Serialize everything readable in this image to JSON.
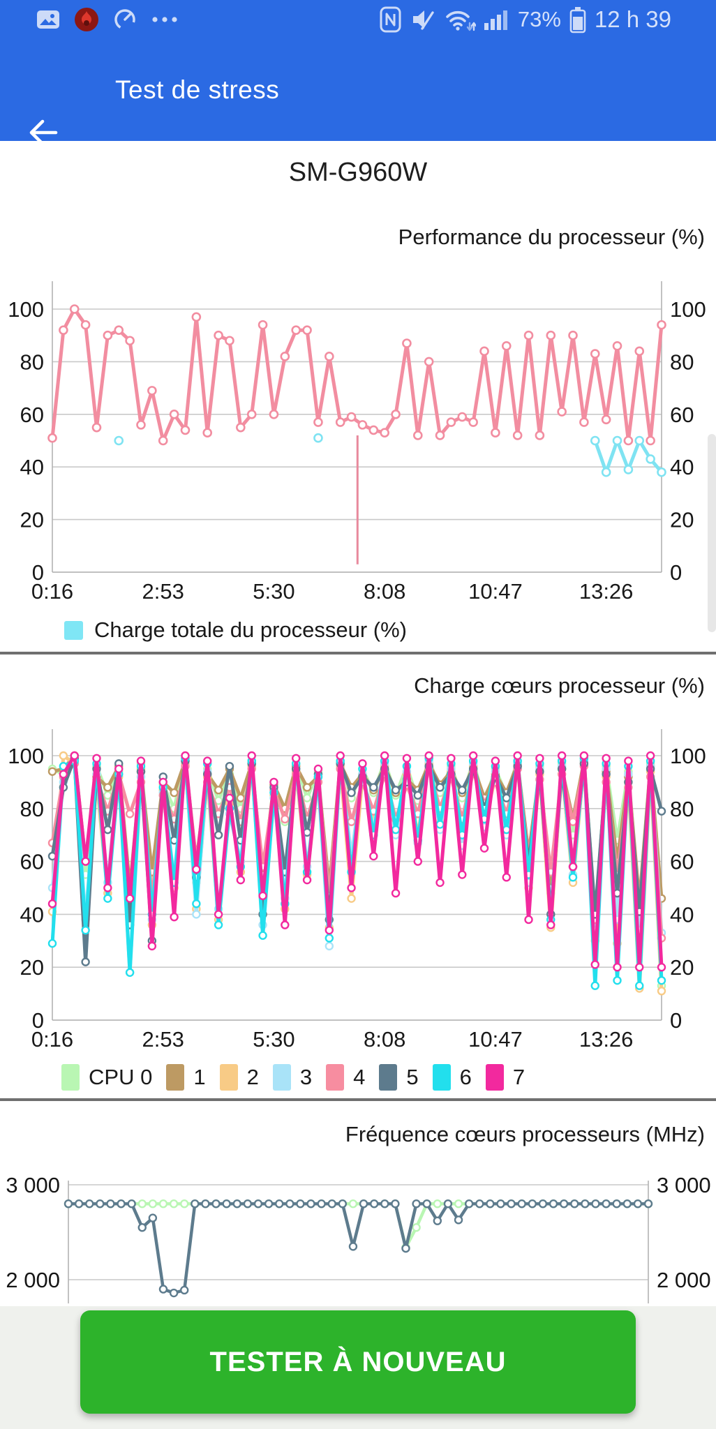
{
  "status_bar": {
    "battery_percent": "73%",
    "time": "12 h 39",
    "left_icons": [
      "image-icon",
      "antutu-flame-icon",
      "gauge-icon",
      "more-dots-icon"
    ],
    "right_icons": [
      "nfc-icon",
      "mute-icon",
      "wifi-icon",
      "signal-icon",
      "battery-icon"
    ],
    "bar_color": "#2B6AE3"
  },
  "app_bar": {
    "title": "Test de stress",
    "back_icon": "arrow-left-icon"
  },
  "device_title": "SM-G960W",
  "button": {
    "label": "TESTER À NOUVEAU",
    "color": "#2DB32B"
  },
  "chart_data": [
    {
      "id": "performance",
      "type": "line",
      "title": "Performance du processeur (%)",
      "ylim": [
        0,
        100
      ],
      "grid": true,
      "yticks": [
        {
          "v": 100,
          "label": "100"
        },
        {
          "v": 80,
          "label": "80"
        },
        {
          "v": 60,
          "label": "60"
        },
        {
          "v": 40,
          "label": "40"
        },
        {
          "v": 20,
          "label": "20"
        },
        {
          "v": 0,
          "label": "0"
        }
      ],
      "xticks": [
        {
          "i": 0,
          "label": "0:16"
        },
        {
          "i": 10,
          "label": "2:53"
        },
        {
          "i": 20,
          "label": "5:30"
        },
        {
          "i": 30,
          "label": "8:08"
        },
        {
          "i": 40,
          "label": "10:47"
        },
        {
          "i": 50,
          "label": "13:26"
        }
      ],
      "legend": [
        {
          "label": "Charge totale du processeur (%)",
          "color": "#7FE6F5"
        }
      ],
      "series": [
        {
          "name": "charge-totale",
          "color": "#7FE3F2",
          "values": [
            null,
            null,
            null,
            null,
            null,
            null,
            50,
            null,
            null,
            null,
            null,
            null,
            null,
            null,
            null,
            null,
            null,
            null,
            null,
            null,
            null,
            null,
            null,
            null,
            51,
            null,
            null,
            null,
            null,
            null,
            null,
            null,
            null,
            null,
            null,
            null,
            null,
            null,
            null,
            null,
            null,
            null,
            null,
            null,
            null,
            null,
            null,
            null,
            null,
            50,
            38,
            50,
            39,
            50,
            43,
            38
          ]
        },
        {
          "name": "performance",
          "color": "#F28DA0",
          "values": [
            51,
            92,
            100,
            94,
            55,
            90,
            92,
            88,
            56,
            69,
            50,
            60,
            54,
            97,
            53,
            90,
            88,
            55,
            60,
            94,
            60,
            82,
            92,
            92,
            57,
            82,
            57,
            59,
            56,
            54,
            53,
            60,
            87,
            52,
            80,
            52,
            57,
            59,
            57,
            84,
            53,
            86,
            52,
            90,
            52,
            90,
            61,
            90,
            57,
            83,
            58,
            86,
            50,
            84,
            50,
            94
          ]
        }
      ],
      "spike": {
        "index": 27.55,
        "from": 52,
        "to": 3,
        "color": "#E8899D"
      }
    },
    {
      "id": "cores",
      "type": "line",
      "title": "Charge cœurs processeur (%)",
      "ylim": [
        0,
        100
      ],
      "grid": true,
      "yticks": [
        {
          "v": 100,
          "label": "100"
        },
        {
          "v": 80,
          "label": "80"
        },
        {
          "v": 60,
          "label": "60"
        },
        {
          "v": 40,
          "label": "40"
        },
        {
          "v": 20,
          "label": "20"
        },
        {
          "v": 0,
          "label": "0"
        }
      ],
      "xticks": [
        {
          "i": 0,
          "label": "0:16"
        },
        {
          "i": 10,
          "label": "2:53"
        },
        {
          "i": 20,
          "label": "5:30"
        },
        {
          "i": 30,
          "label": "8:08"
        },
        {
          "i": 40,
          "label": "10:47"
        },
        {
          "i": 50,
          "label": "13:26"
        }
      ],
      "legend": [
        {
          "label": "CPU 0",
          "color": "#B9F6B3"
        },
        {
          "label": "1",
          "color": "#BD9A63"
        },
        {
          "label": "2",
          "color": "#F8CB86"
        },
        {
          "label": "3",
          "color": "#A9E3F8"
        },
        {
          "label": "4",
          "color": "#F78DA0"
        },
        {
          "label": "5",
          "color": "#5D7B8D"
        },
        {
          "label": "6",
          "color": "#22DFED"
        },
        {
          "label": "7",
          "color": "#F2299E"
        }
      ],
      "series": [
        {
          "name": "cpu0",
          "color": "#B9F6B3",
          "values": [
            95,
            93,
            99,
            55,
            96,
            85,
            94,
            48,
            97,
            50,
            89,
            80,
            99,
            52,
            95,
            83,
            93,
            80,
            98,
            50,
            90,
            75,
            97,
            84,
            94,
            45,
            98,
            84,
            95,
            86,
            98,
            85,
            96,
            83,
            99,
            86,
            96,
            84,
            98,
            82,
            95,
            85,
            98,
            60,
            96,
            48,
            97,
            70,
            99,
            35,
            96,
            68,
            94,
            42,
            97,
            13
          ]
        },
        {
          "name": "cpu1",
          "color": "#BD9A63",
          "values": [
            94,
            95,
            100,
            60,
            92,
            88,
            96,
            50,
            94,
            56,
            90,
            86,
            98,
            60,
            93,
            87,
            95,
            84,
            97,
            55,
            89,
            80,
            96,
            88,
            92,
            50,
            97,
            88,
            93,
            87,
            96,
            86,
            91,
            87,
            97,
            89,
            94,
            86,
            96,
            84,
            93,
            86,
            97,
            63,
            94,
            50,
            95,
            76,
            98,
            38,
            94,
            60,
            92,
            45,
            96,
            46
          ]
        },
        {
          "name": "cpu2",
          "color": "#F8CB86",
          "values": [
            41,
            100,
            97,
            60,
            90,
            48,
            92,
            46,
            95,
            36,
            87,
            50,
            97,
            42,
            92,
            38,
            82,
            56,
            96,
            40,
            85,
            42,
            94,
            55,
            90,
            35,
            96,
            46,
            92,
            74,
            96,
            72,
            93,
            70,
            97,
            75,
            94,
            72,
            96,
            74,
            92,
            70,
            96,
            50,
            93,
            35,
            95,
            52,
            97,
            30,
            92,
            29,
            90,
            12,
            94,
            11
          ]
        },
        {
          "name": "cpu3",
          "color": "#A9E3F8",
          "values": [
            50,
            90,
            98,
            38,
            93,
            52,
            95,
            18,
            92,
            38,
            86,
            54,
            98,
            40,
            94,
            42,
            78,
            60,
            97,
            36,
            84,
            46,
            95,
            58,
            90,
            28,
            97,
            62,
            93,
            72,
            97,
            70,
            94,
            67,
            98,
            72,
            95,
            66,
            97,
            73,
            94,
            70,
            97,
            52,
            95,
            40,
            96,
            55,
            98,
            34,
            95,
            38,
            93,
            34,
            96,
            33
          ]
        },
        {
          "name": "cpu4",
          "color": "#F78DA0",
          "values": [
            67,
            92,
            97,
            60,
            91,
            79,
            93,
            78,
            90,
            46,
            85,
            76,
            96,
            60,
            90,
            78,
            88,
            75,
            95,
            58,
            87,
            76,
            93,
            76,
            90,
            47,
            95,
            75,
            90,
            79,
            93,
            76,
            89,
            78,
            95,
            80,
            92,
            76,
            94,
            82,
            90,
            78,
            95,
            62,
            91,
            56,
            93,
            75,
            96,
            38,
            90,
            55,
            88,
            43,
            92,
            31
          ]
        },
        {
          "name": "cpu5",
          "color": "#5D7B8D",
          "values": [
            62,
            88,
            99,
            22,
            95,
            72,
            97,
            36,
            94,
            30,
            92,
            68,
            98,
            54,
            93,
            70,
            96,
            68,
            97,
            40,
            88,
            56,
            95,
            71,
            93,
            38,
            97,
            86,
            92,
            88,
            95,
            87,
            90,
            85,
            96,
            88,
            93,
            87,
            95,
            80,
            92,
            84,
            96,
            59,
            94,
            40,
            95,
            58,
            97,
            40,
            93,
            48,
            90,
            41,
            95,
            79
          ]
        },
        {
          "name": "cpu6",
          "color": "#22DFED",
          "values": [
            29,
            96,
            98,
            34,
            97,
            46,
            93,
            18,
            96,
            40,
            88,
            52,
            99,
            44,
            97,
            36,
            80,
            58,
            98,
            32,
            86,
            44,
            97,
            56,
            92,
            31,
            98,
            56,
            95,
            70,
            98,
            72,
            96,
            68,
            99,
            74,
            97,
            70,
            98,
            76,
            96,
            72,
            98,
            55,
            97,
            38,
            98,
            54,
            99,
            13,
            97,
            15,
            96,
            13,
            98,
            15
          ]
        },
        {
          "name": "cpu7",
          "color": "#F2299E",
          "values": [
            44,
            93,
            100,
            60,
            99,
            50,
            95,
            46,
            98,
            28,
            90,
            39,
            100,
            57,
            98,
            40,
            84,
            53,
            100,
            47,
            90,
            36,
            99,
            53,
            95,
            34,
            100,
            50,
            97,
            62,
            100,
            48,
            99,
            60,
            100,
            52,
            99,
            55,
            100,
            65,
            98,
            54,
            100,
            38,
            99,
            36,
            100,
            58,
            100,
            21,
            99,
            20,
            98,
            20,
            100,
            20
          ]
        }
      ]
    },
    {
      "id": "freq",
      "type": "line",
      "title": "Fréquence cœurs processeurs (MHz)",
      "ylim": [
        2000,
        3000
      ],
      "grid": true,
      "yticks": [
        {
          "v": 3000,
          "label": "3 000"
        },
        {
          "v": 2000,
          "label": "2 000"
        }
      ],
      "xticks": [],
      "legend": [],
      "series": [
        {
          "name": "cpu0",
          "color": "#B9F6B3",
          "values": [
            2800,
            2800,
            2800,
            2800,
            2800,
            2800,
            2800,
            2800,
            2800,
            2800,
            2800,
            2800,
            2800,
            2800,
            2800,
            2800,
            2800,
            2800,
            2800,
            2800,
            2800,
            2800,
            2800,
            2800,
            2800,
            2800,
            2800,
            2800,
            2800,
            2800,
            2800,
            2800,
            2340,
            2550,
            2800,
            2800,
            2800,
            2800,
            2800,
            2800,
            2800,
            2800,
            2800,
            2800,
            2800,
            2800,
            2800,
            2800,
            2800,
            2800,
            2800,
            2800,
            2800,
            2800,
            2800,
            2800
          ]
        },
        {
          "name": "cpu5",
          "color": "#5D7B8D",
          "values": [
            2800,
            2800,
            2800,
            2800,
            2800,
            2800,
            2800,
            2550,
            2650,
            1900,
            1860,
            1890,
            2800,
            2800,
            2800,
            2800,
            2800,
            2800,
            2800,
            2800,
            2800,
            2800,
            2800,
            2800,
            2800,
            2800,
            2800,
            2350,
            2800,
            2800,
            2800,
            2800,
            2330,
            2800,
            2800,
            2620,
            2800,
            2630,
            2800,
            2800,
            2800,
            2800,
            2800,
            2800,
            2800,
            2800,
            2800,
            2800,
            2800,
            2800,
            2800,
            2800,
            2800,
            2800,
            2800,
            2800
          ]
        }
      ]
    }
  ]
}
